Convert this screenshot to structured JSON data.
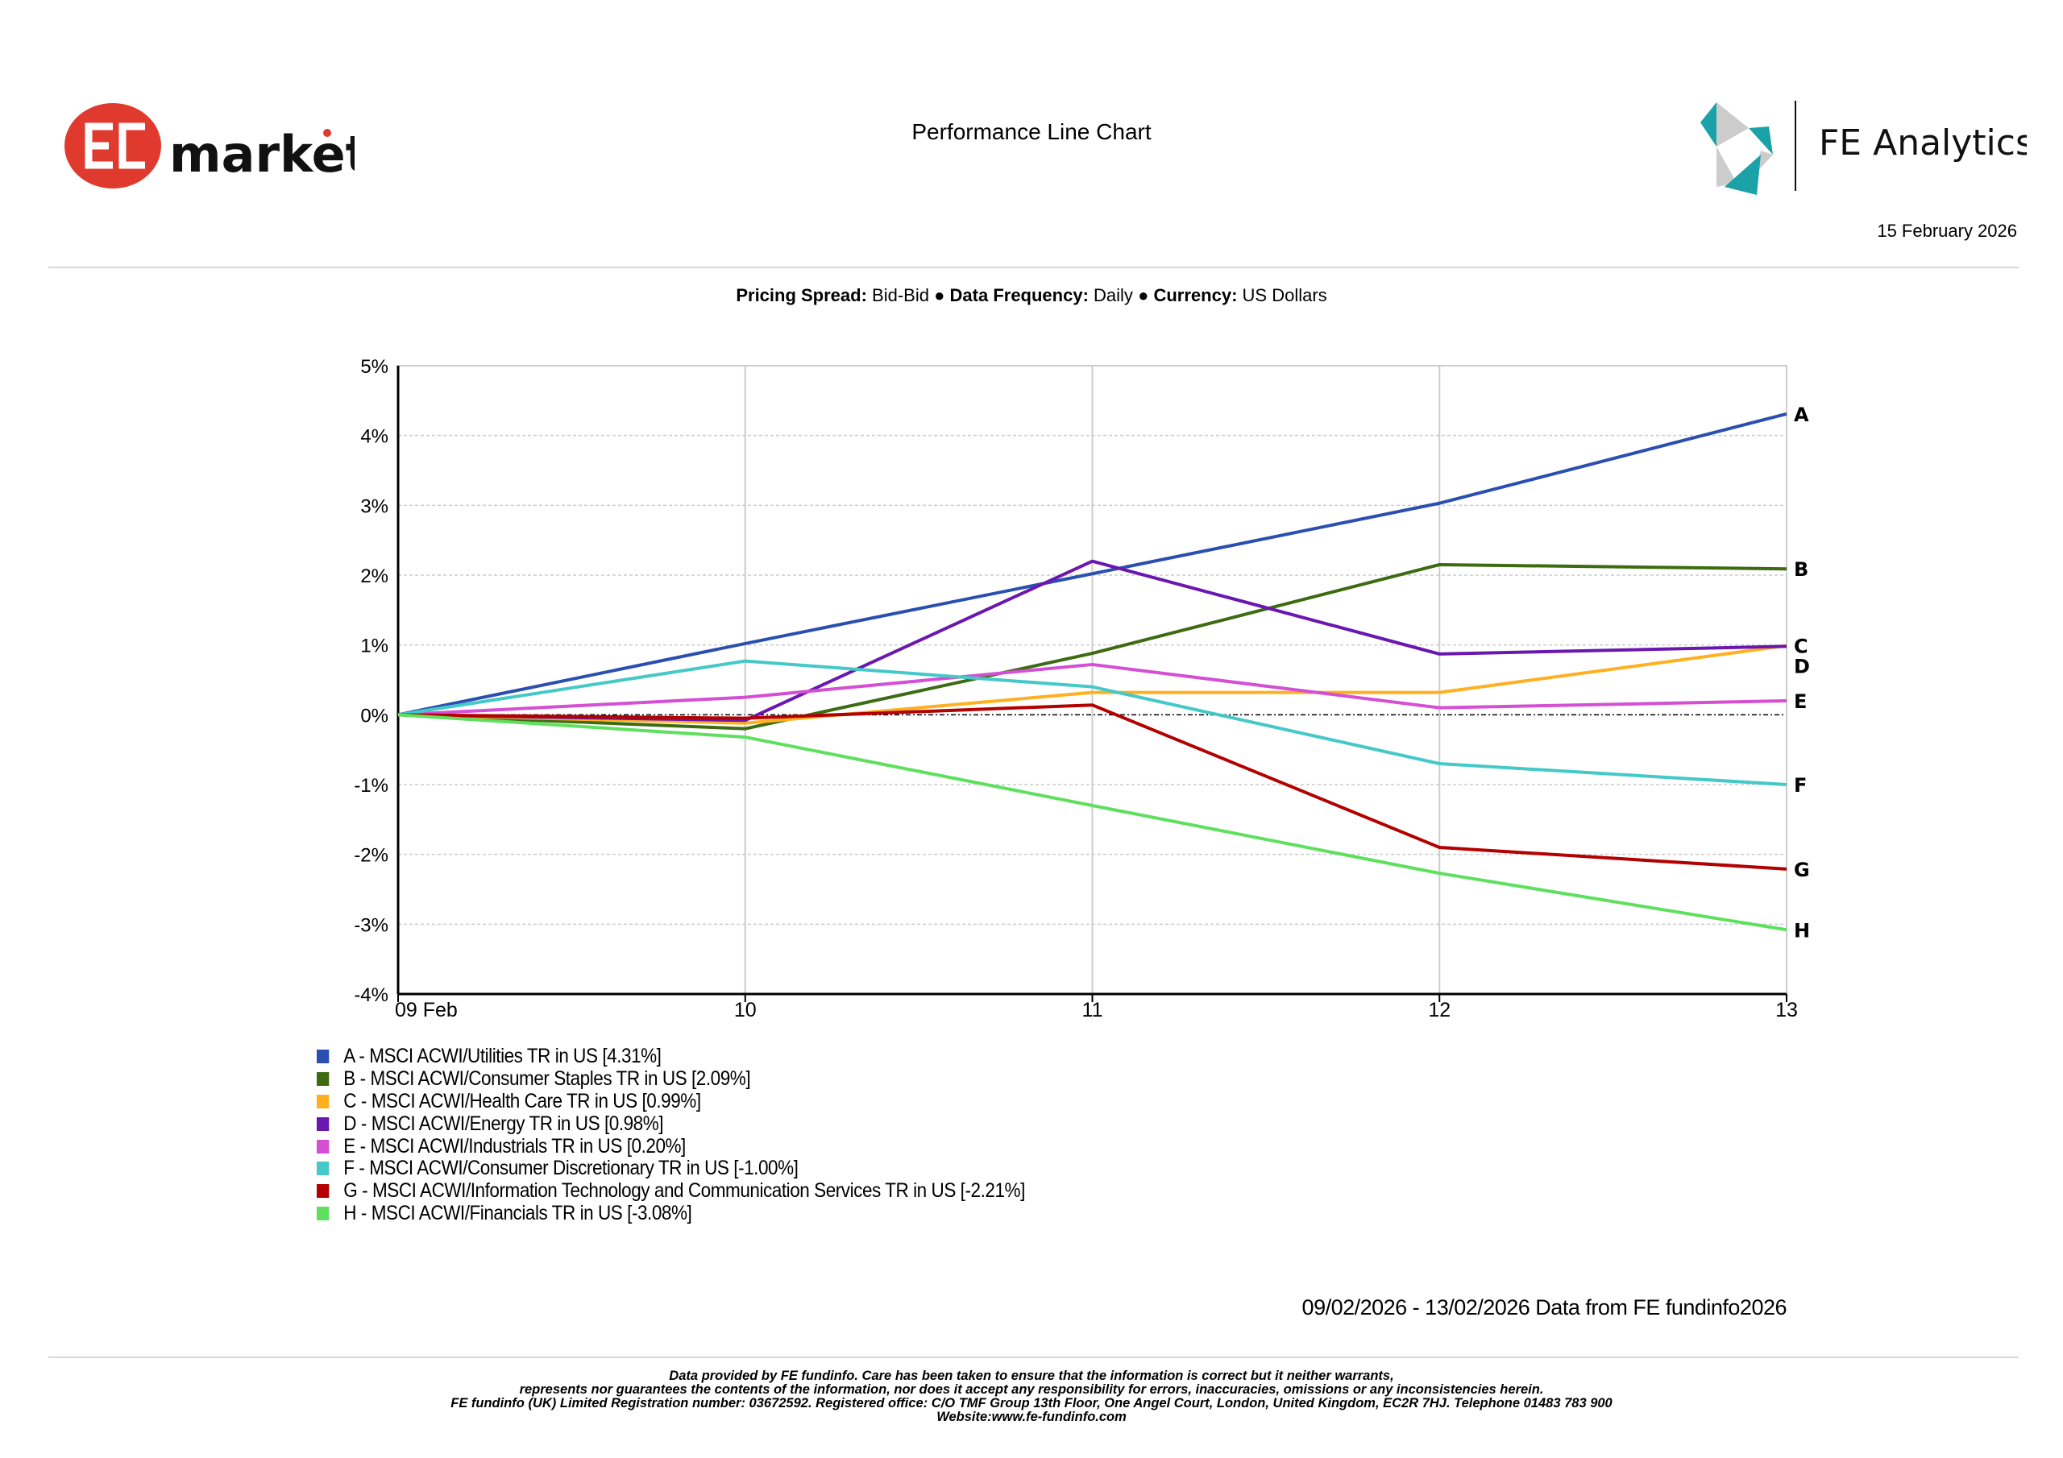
{
  "header": {
    "brand_logo": "EC markets",
    "title": "Performance Line Chart",
    "partner_logo": "FE Analytics",
    "date": "15 February 2026"
  },
  "settings": {
    "pricing_label": "Pricing Spread:",
    "pricing_value": "Bid-Bid",
    "frequency_label": "Data Frequency:",
    "frequency_value": "Daily",
    "currency_label": "Currency:",
    "currency_value": "US Dollars",
    "separator": "●"
  },
  "chart_data": {
    "type": "line",
    "title": "Performance Line Chart",
    "xlabel": "",
    "ylabel": "",
    "x": [
      "09 Feb",
      "10",
      "11",
      "12",
      "13"
    ],
    "ylim": [
      -4,
      5
    ],
    "yticks": [
      5,
      4,
      3,
      2,
      1,
      0,
      -1,
      -2,
      -3,
      -4
    ],
    "ytick_labels": [
      "5%",
      "4%",
      "3%",
      "2%",
      "1%",
      "0%",
      "-1%",
      "-2%",
      "-3%",
      "-4%"
    ],
    "grid": true,
    "legend_position": "bottom-left",
    "series": [
      {
        "id": "A",
        "name": "A - MSCI ACWI/Utilities TR in US [4.31%]",
        "color": "#2a4fb0",
        "values": [
          0,
          1.02,
          2.02,
          3.03,
          4.31
        ]
      },
      {
        "id": "B",
        "name": "B - MSCI ACWI/Consumer Staples TR in US [2.09%]",
        "color": "#3d6b12",
        "values": [
          0,
          -0.2,
          0.88,
          2.15,
          2.09
        ]
      },
      {
        "id": "C",
        "name": "C - MSCI ACWI/Health Care TR in US [0.99%]",
        "color": "#ffb020",
        "values": [
          0,
          -0.12,
          0.32,
          0.32,
          0.99
        ]
      },
      {
        "id": "D",
        "name": "D - MSCI ACWI/Energy TR in US [0.98%]",
        "color": "#6a17b0",
        "values": [
          0,
          -0.08,
          2.2,
          0.87,
          0.98
        ]
      },
      {
        "id": "E",
        "name": "E - MSCI ACWI/Industrials TR in US [0.20%]",
        "color": "#d44fd4",
        "values": [
          0,
          0.25,
          0.72,
          0.1,
          0.2
        ]
      },
      {
        "id": "F",
        "name": "F - MSCI ACWI/Consumer Discretionary TR in US [-1.00%]",
        "color": "#45c8c8",
        "values": [
          0,
          0.77,
          0.4,
          -0.7,
          -1.0
        ]
      },
      {
        "id": "G",
        "name": "G - MSCI ACWI/Information Technology and Communication Services TR in US [-2.21%]",
        "color": "#b30000",
        "values": [
          0,
          -0.05,
          0.14,
          -1.9,
          -2.21
        ]
      },
      {
        "id": "H",
        "name": "H - MSCI ACWI/Financials TR in US [-3.08%]",
        "color": "#5ee05e",
        "values": [
          0,
          -0.32,
          -1.3,
          -2.27,
          -3.08
        ]
      }
    ]
  },
  "range_note": "09/02/2026 - 13/02/2026 Data from FE fundinfo2026",
  "footer": {
    "line1": "Data provided by FE fundinfo. Care has been taken to ensure that the information is correct but it neither warrants,",
    "line2": "represents nor guarantees the contents of the information, nor does it accept any responsibility for errors, inaccuracies, omissions or any inconsistencies herein.",
    "line3": "FE fundinfo (UK) Limited Registration number: 03672592. Registered office: C/O TMF Group 13th Floor, One Angel Court, London, United Kingdom, EC2R 7HJ. Telephone 01483 783 900",
    "line4": "Website:www.fe-fundinfo.com"
  }
}
